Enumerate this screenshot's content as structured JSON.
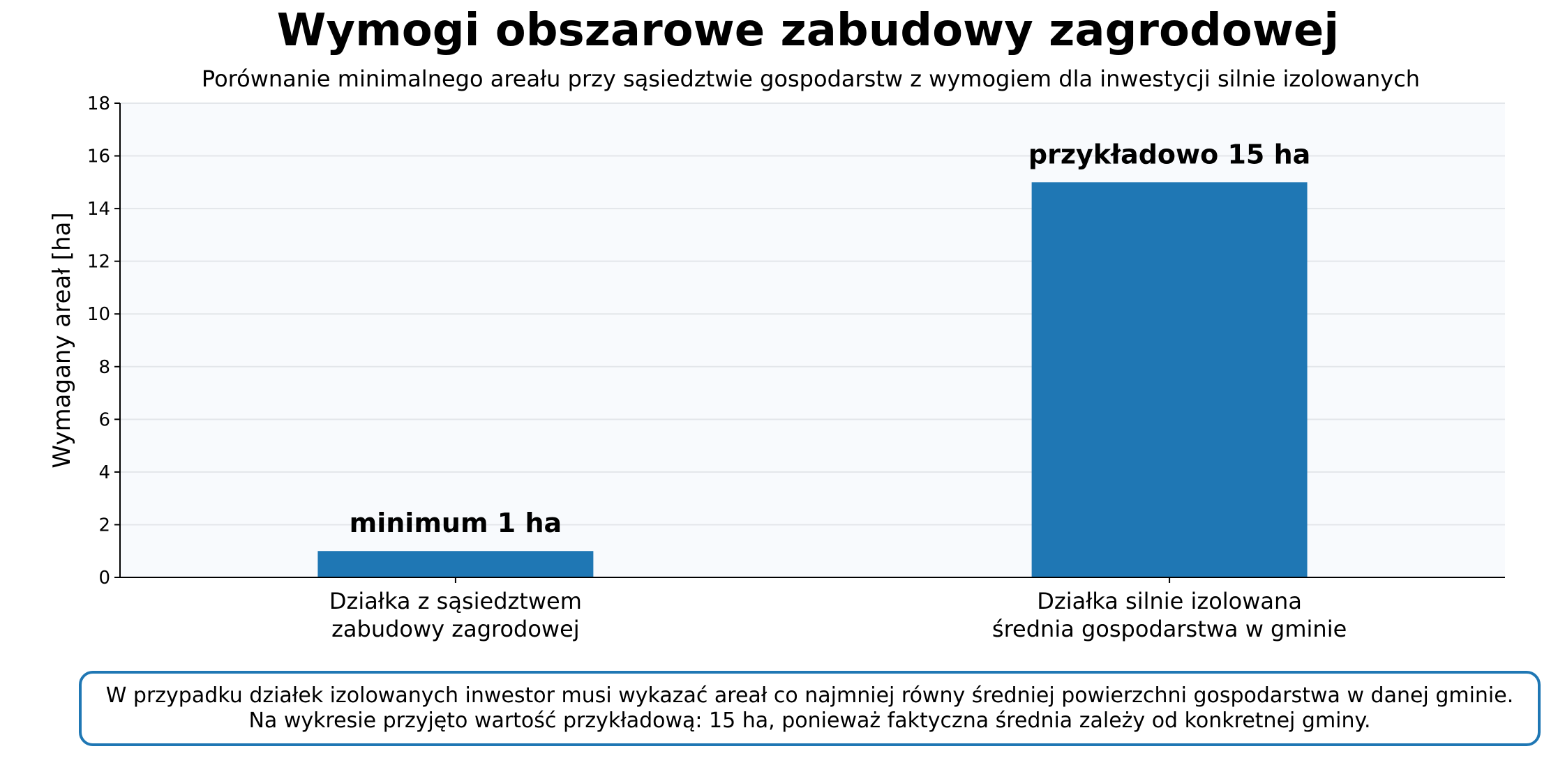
{
  "chart_data": {
    "type": "bar",
    "title": "Wymogi obszarowe zabudowy zagrodowej",
    "subtitle": "Porównanie minimalnego areału przy sąsiedztwie gospodarstw z wymogiem dla inwestycji silnie izolowanych",
    "xlabel": "",
    "ylabel": "Wymagany areał [ha]",
    "categories": [
      [
        "Działka z sąsiedztwem",
        "zabudowy zagrodowej"
      ],
      [
        "Działka silnie izolowana",
        "średnia gospodarstwa w gminie"
      ]
    ],
    "values": [
      1,
      15
    ],
    "data_labels": [
      "minimum 1 ha",
      "przykładowo 15 ha"
    ],
    "ylim": [
      0,
      18
    ],
    "yticks": [
      0,
      2,
      4,
      6,
      8,
      10,
      12,
      14,
      16,
      18
    ],
    "grid": "horizontal",
    "colors": {
      "bar": "#1f77b4",
      "plot_bg": "#f8fafd",
      "grid": "#e3e6ea",
      "axis": "#000000"
    }
  },
  "note": {
    "line1": "W przypadku działek izolowanych inwestor musi wykazać areał co najmniej równy średniej powierzchni gospodarstwa w danej gminie.",
    "line2": "Na wykresie przyjęto wartość przykładową: 15 ha, ponieważ faktyczna średnia zależy od konkretnej gminy."
  }
}
